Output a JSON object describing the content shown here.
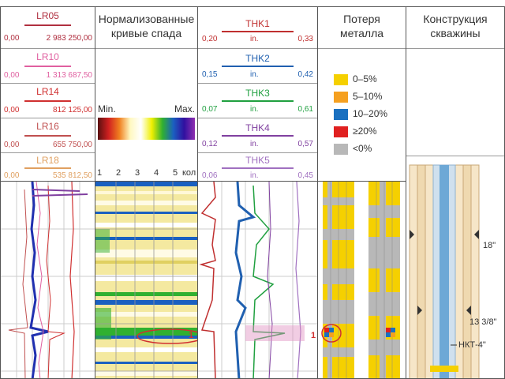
{
  "track1": {
    "curves": [
      {
        "name": "LR05",
        "min": "0,00",
        "max": "2 983 250,00",
        "color": "#b03040"
      },
      {
        "name": "LR10",
        "min": "0,00",
        "max": "1 313 687,50",
        "color": "#e060a0"
      },
      {
        "name": "LR14",
        "min": "0,00",
        "max": "812 125,00",
        "color": "#d03030"
      },
      {
        "name": "LR16",
        "min": "0,00",
        "max": "655 750,00",
        "color": "#c05050"
      },
      {
        "name": "LR18",
        "min": "0,00",
        "max": "535 812,50",
        "color": "#e0a060"
      }
    ]
  },
  "track2": {
    "title_line1": "Нормализованные",
    "title_line2": "кривые спада",
    "scale_min": "Min.",
    "scale_max": "Max.",
    "ticks": [
      "1",
      "2",
      "3",
      "4",
      "5"
    ],
    "tick_unit": "кол",
    "marker": "1"
  },
  "track3": {
    "curves": [
      {
        "name": "THK1",
        "min": "0,20",
        "unit": "in.",
        "max": "0,33",
        "color": "#c03030"
      },
      {
        "name": "THK2",
        "min": "0,15",
        "unit": "in.",
        "max": "0,42",
        "color": "#2060b0"
      },
      {
        "name": "THK3",
        "min": "0,07",
        "unit": "in.",
        "max": "0,61",
        "color": "#20a040"
      },
      {
        "name": "THK4",
        "min": "0,12",
        "unit": "in.",
        "max": "0,57",
        "color": "#8040a0"
      },
      {
        "name": "THK5",
        "min": "0,06",
        "unit": "in.",
        "max": "0,45",
        "color": "#a070c0"
      }
    ],
    "marker": "1"
  },
  "track4": {
    "title_line1": "Потеря",
    "title_line2": "металла",
    "legend": [
      {
        "label": "0–5%",
        "color": "#f5d000"
      },
      {
        "label": "5–10%",
        "color": "#f5a020"
      },
      {
        "label": "10–20%",
        "color": "#1a70c0"
      },
      {
        "label": "≥20%",
        "color": "#e02020"
      },
      {
        "label": "<0%",
        "color": "#b8b8b8"
      }
    ]
  },
  "track5": {
    "title_line1": "Конструкция",
    "title_line2": "скважины",
    "labels": {
      "casing1": "18\"",
      "casing2": "13 3/8\"",
      "tubing": "НКТ-4\""
    }
  }
}
